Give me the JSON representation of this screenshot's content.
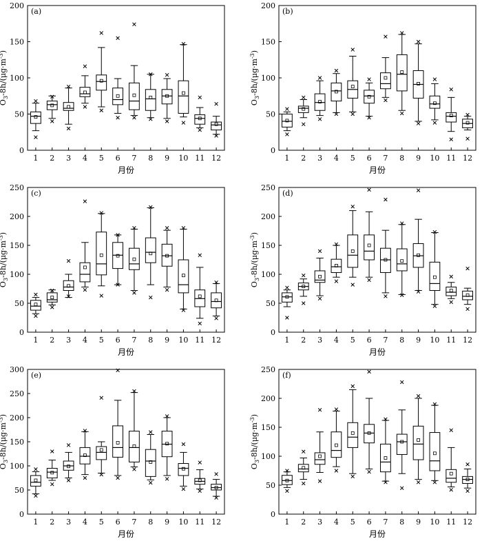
{
  "figure": {
    "xlabel": "月份",
    "ylabel_main": "O",
    "ylabel_sub": "3",
    "ylabel_rest": "-8h/(μg·m",
    "ylabel_sup": "-3",
    "ylabel_end": ")"
  },
  "chart_data": [
    {
      "type": "box",
      "panel": "(a)",
      "xlabel": "月份",
      "ylim": [
        0,
        200
      ],
      "yticks": [
        0,
        50,
        100,
        150,
        200
      ],
      "categories": [
        "1",
        "2",
        "3",
        "4",
        "5",
        "6",
        "7",
        "8",
        "9",
        "10",
        "11",
        "12"
      ],
      "boxes": [
        {
          "wlo": 27,
          "q1": 37,
          "med": 47,
          "q3": 53,
          "whi": 65,
          "mean": 46,
          "out_hi": 68,
          "out_lo": 18
        },
        {
          "wlo": 44,
          "q1": 56,
          "med": 63,
          "q3": 68,
          "whi": 75,
          "mean": 62,
          "out_hi": 74,
          "out_lo": 40
        },
        {
          "wlo": 36,
          "q1": 55,
          "med": 58,
          "q3": 66,
          "whi": 86,
          "mean": 60,
          "out_hi": 88,
          "out_lo": 30
        },
        {
          "wlo": 65,
          "q1": 74,
          "med": 78,
          "q3": 87,
          "whi": 103,
          "mean": 80,
          "out_hi": 116,
          "out_lo": 60
        },
        {
          "wlo": 60,
          "q1": 83,
          "med": 95,
          "q3": 104,
          "whi": 142,
          "mean": 96,
          "out_hi": 162,
          "out_lo": 55
        },
        {
          "wlo": 51,
          "q1": 63,
          "med": 70,
          "q3": 86,
          "whi": 99,
          "mean": 75,
          "out_hi": 155,
          "out_lo": 45
        },
        {
          "wlo": 48,
          "q1": 56,
          "med": 68,
          "q3": 93,
          "whi": 117,
          "mean": 76,
          "out_hi": 174,
          "out_lo": 45
        },
        {
          "wlo": 45,
          "q1": 55,
          "med": 71,
          "q3": 84,
          "whi": 105,
          "mean": 73,
          "out_hi": 105,
          "out_lo": 43
        },
        {
          "wlo": 44,
          "q1": 64,
          "med": 75,
          "q3": 84,
          "whi": 99,
          "mean": 75,
          "out_hi": 104,
          "out_lo": 40
        },
        {
          "wlo": 46,
          "q1": 51,
          "med": 75,
          "q3": 96,
          "whi": 146,
          "mean": 79,
          "out_hi": 147,
          "out_lo": 38
        },
        {
          "wlo": 31,
          "q1": 36,
          "med": 44,
          "q3": 49,
          "whi": 59,
          "mean": 44,
          "out_hi": 73,
          "out_lo": 28
        },
        {
          "wlo": 22,
          "q1": 28,
          "med": 35,
          "q3": 39,
          "whi": 47,
          "mean": 36,
          "out_hi": 64,
          "out_lo": 20
        }
      ]
    },
    {
      "type": "box",
      "panel": "(b)",
      "xlabel": "月份",
      "ylim": [
        0,
        200
      ],
      "yticks": [
        0,
        50,
        100,
        150,
        200
      ],
      "categories": [
        "1",
        "2",
        "3",
        "4",
        "5",
        "6",
        "7",
        "8",
        "9",
        "10",
        "11",
        "12"
      ],
      "boxes": [
        {
          "wlo": 27,
          "q1": 32,
          "med": 40,
          "q3": 50,
          "whi": 53,
          "mean": 41,
          "out_hi": 57,
          "out_lo": 22
        },
        {
          "wlo": 45,
          "q1": 52,
          "med": 58,
          "q3": 61,
          "whi": 70,
          "mean": 57,
          "out_hi": 73,
          "out_lo": 36
        },
        {
          "wlo": 48,
          "q1": 55,
          "med": 66,
          "q3": 78,
          "whi": 96,
          "mean": 67,
          "out_hi": 100,
          "out_lo": 43
        },
        {
          "wlo": 52,
          "q1": 68,
          "med": 82,
          "q3": 93,
          "whi": 106,
          "mean": 81,
          "out_hi": 110,
          "out_lo": 50
        },
        {
          "wlo": 53,
          "q1": 72,
          "med": 84,
          "q3": 96,
          "whi": 130,
          "mean": 88,
          "out_hi": 139,
          "out_lo": 50
        },
        {
          "wlo": 47,
          "q1": 65,
          "med": 75,
          "q3": 83,
          "whi": 93,
          "mean": 74,
          "out_hi": 98,
          "out_lo": 45
        },
        {
          "wlo": 73,
          "q1": 85,
          "med": 92,
          "q3": 107,
          "whi": 128,
          "mean": 100,
          "out_hi": 157,
          "out_lo": 69
        },
        {
          "wlo": 55,
          "q1": 82,
          "med": 105,
          "q3": 132,
          "whi": 160,
          "mean": 108,
          "out_hi": 162,
          "out_lo": 51
        },
        {
          "wlo": 40,
          "q1": 72,
          "med": 91,
          "q3": 110,
          "whi": 147,
          "mean": 92,
          "out_hi": 150,
          "out_lo": 37
        },
        {
          "wlo": 42,
          "q1": 58,
          "med": 64,
          "q3": 75,
          "whi": 92,
          "mean": 65,
          "out_hi": 98,
          "out_lo": 38
        },
        {
          "wlo": 26,
          "q1": 39,
          "med": 47,
          "q3": 52,
          "whi": 73,
          "mean": 48,
          "out_hi": 84,
          "out_lo": 15
        },
        {
          "wlo": 28,
          "q1": 31,
          "med": 37,
          "q3": 43,
          "whi": 47,
          "mean": 38,
          "out_hi": 49,
          "out_lo": 16
        }
      ]
    },
    {
      "type": "box",
      "panel": "(c)",
      "xlabel": "月份",
      "ylim": [
        0,
        250
      ],
      "yticks": [
        0,
        50,
        100,
        150,
        200,
        250
      ],
      "categories": [
        "1",
        "2",
        "3",
        "4",
        "5",
        "6",
        "7",
        "8",
        "9",
        "10",
        "11",
        "12"
      ],
      "boxes": [
        {
          "wlo": 32,
          "q1": 38,
          "med": 45,
          "q3": 55,
          "whi": 60,
          "mean": 48,
          "out_hi": 65,
          "out_lo": 28
        },
        {
          "wlo": 47,
          "q1": 52,
          "med": 56,
          "q3": 68,
          "whi": 73,
          "mean": 60,
          "out_hi": 72,
          "out_lo": 43
        },
        {
          "wlo": 60,
          "q1": 72,
          "med": 78,
          "q3": 89,
          "whi": 100,
          "mean": 80,
          "out_hi": 123,
          "out_lo": 62
        },
        {
          "wlo": 78,
          "q1": 87,
          "med": 100,
          "q3": 120,
          "whi": 155,
          "mean": 112,
          "out_hi": 226,
          "out_lo": 73
        },
        {
          "wlo": 80,
          "q1": 99,
          "med": 118,
          "q3": 173,
          "whi": 205,
          "mean": 133,
          "out_hi": 206,
          "out_lo": 63
        },
        {
          "wlo": 82,
          "q1": 110,
          "med": 133,
          "q3": 155,
          "whi": 168,
          "mean": 132,
          "out_hi": 168,
          "out_lo": 82
        },
        {
          "wlo": 72,
          "q1": 108,
          "med": 118,
          "q3": 145,
          "whi": 178,
          "mean": 126,
          "out_hi": 180,
          "out_lo": 68
        },
        {
          "wlo": 82,
          "q1": 120,
          "med": 138,
          "q3": 163,
          "whi": 215,
          "mean": 136,
          "out_hi": 216,
          "out_lo": 60
        },
        {
          "wlo": 78,
          "q1": 114,
          "med": 132,
          "q3": 152,
          "whi": 176,
          "mean": 132,
          "out_hi": 180,
          "out_lo": 73
        },
        {
          "wlo": 40,
          "q1": 68,
          "med": 82,
          "q3": 125,
          "whi": 178,
          "mean": 98,
          "out_hi": 180,
          "out_lo": 38
        },
        {
          "wlo": 24,
          "q1": 44,
          "med": 58,
          "q3": 73,
          "whi": 112,
          "mean": 62,
          "out_hi": 133,
          "out_lo": 15
        },
        {
          "wlo": 28,
          "q1": 42,
          "med": 53,
          "q3": 68,
          "whi": 84,
          "mean": 55,
          "out_hi": 86,
          "out_lo": 24
        }
      ]
    },
    {
      "type": "box",
      "panel": "(d)",
      "xlabel": "月份",
      "ylim": [
        0,
        250
      ],
      "yticks": [
        0,
        50,
        100,
        150,
        200,
        250
      ],
      "categories": [
        "1",
        "2",
        "3",
        "4",
        "5",
        "6",
        "7",
        "8",
        "9",
        "10",
        "11",
        "12"
      ],
      "boxes": [
        {
          "wlo": 44,
          "q1": 52,
          "med": 61,
          "q3": 68,
          "whi": 73,
          "mean": 61,
          "out_hi": 77,
          "out_lo": 25
        },
        {
          "wlo": 62,
          "q1": 73,
          "med": 79,
          "q3": 85,
          "whi": 92,
          "mean": 79,
          "out_hi": 98,
          "out_lo": 50
        },
        {
          "wlo": 63,
          "q1": 86,
          "med": 90,
          "q3": 106,
          "whi": 128,
          "mean": 96,
          "out_hi": 140,
          "out_lo": 58
        },
        {
          "wlo": 95,
          "q1": 103,
          "med": 113,
          "q3": 126,
          "whi": 150,
          "mean": 115,
          "out_hi": 152,
          "out_lo": 88
        },
        {
          "wlo": 95,
          "q1": 112,
          "med": 133,
          "q3": 168,
          "whi": 210,
          "mean": 140,
          "out_hi": 217,
          "out_lo": 82
        },
        {
          "wlo": 95,
          "q1": 125,
          "med": 140,
          "q3": 168,
          "whi": 208,
          "mean": 150,
          "out_hi": 246,
          "out_lo": 90
        },
        {
          "wlo": 68,
          "q1": 103,
          "med": 125,
          "q3": 145,
          "whi": 176,
          "mean": 125,
          "out_hi": 229,
          "out_lo": 62
        },
        {
          "wlo": 65,
          "q1": 106,
          "med": 118,
          "q3": 144,
          "whi": 186,
          "mean": 123,
          "out_hi": 188,
          "out_lo": 64
        },
        {
          "wlo": 72,
          "q1": 112,
          "med": 132,
          "q3": 153,
          "whi": 195,
          "mean": 133,
          "out_hi": 245,
          "out_lo": 70
        },
        {
          "wlo": 48,
          "q1": 72,
          "med": 84,
          "q3": 121,
          "whi": 172,
          "mean": 95,
          "out_hi": 173,
          "out_lo": 45
        },
        {
          "wlo": 58,
          "q1": 63,
          "med": 69,
          "q3": 78,
          "whi": 86,
          "mean": 72,
          "out_hi": 96,
          "out_lo": 52
        },
        {
          "wlo": 48,
          "q1": 56,
          "med": 62,
          "q3": 71,
          "whi": 76,
          "mean": 64,
          "out_hi": 110,
          "out_lo": 40
        }
      ]
    },
    {
      "type": "box",
      "panel": "(e)",
      "xlabel": "月份",
      "ylim": [
        0,
        300
      ],
      "yticks": [
        0,
        50,
        100,
        150,
        200,
        250,
        300
      ],
      "categories": [
        "1",
        "2",
        "3",
        "4",
        "5",
        "6",
        "7",
        "8",
        "9",
        "10",
        "11",
        "12"
      ],
      "boxes": [
        {
          "wlo": 42,
          "q1": 58,
          "med": 66,
          "q3": 80,
          "whi": 88,
          "mean": 70,
          "out_hi": 93,
          "out_lo": 38
        },
        {
          "wlo": 70,
          "q1": 75,
          "med": 87,
          "q3": 95,
          "whi": 112,
          "mean": 86,
          "out_hi": 130,
          "out_lo": 62
        },
        {
          "wlo": 75,
          "q1": 91,
          "med": 100,
          "q3": 110,
          "whi": 128,
          "mean": 99,
          "out_hi": 143,
          "out_lo": 70
        },
        {
          "wlo": 82,
          "q1": 104,
          "med": 120,
          "q3": 138,
          "whi": 171,
          "mean": 122,
          "out_hi": 173,
          "out_lo": 75
        },
        {
          "wlo": 85,
          "q1": 113,
          "med": 128,
          "q3": 140,
          "whi": 150,
          "mean": 133,
          "out_hi": 241,
          "out_lo": 82
        },
        {
          "wlo": 80,
          "q1": 118,
          "med": 138,
          "q3": 183,
          "whi": 236,
          "mean": 148,
          "out_hi": 298,
          "out_lo": 75
        },
        {
          "wlo": 98,
          "q1": 108,
          "med": 138,
          "q3": 172,
          "whi": 252,
          "mean": 141,
          "out_hi": 255,
          "out_lo": 93
        },
        {
          "wlo": 71,
          "q1": 78,
          "med": 110,
          "q3": 134,
          "whi": 165,
          "mean": 108,
          "out_hi": 170,
          "out_lo": 65
        },
        {
          "wlo": 80,
          "q1": 119,
          "med": 145,
          "q3": 172,
          "whi": 200,
          "mean": 146,
          "out_hi": 203,
          "out_lo": 73
        },
        {
          "wlo": 58,
          "q1": 80,
          "med": 95,
          "q3": 105,
          "whi": 128,
          "mean": 94,
          "out_hi": 145,
          "out_lo": 52
        },
        {
          "wlo": 52,
          "q1": 62,
          "med": 68,
          "q3": 74,
          "whi": 92,
          "mean": 70,
          "out_hi": 107,
          "out_lo": 48
        },
        {
          "wlo": 37,
          "q1": 50,
          "med": 55,
          "q3": 62,
          "whi": 72,
          "mean": 55,
          "out_hi": 83,
          "out_lo": 34
        }
      ]
    },
    {
      "type": "box",
      "panel": "(f)",
      "xlabel": "月份",
      "ylim": [
        0,
        250
      ],
      "yticks": [
        0,
        50,
        100,
        150,
        200,
        250
      ],
      "categories": [
        "1",
        "2",
        "3",
        "4",
        "5",
        "6",
        "7",
        "8",
        "9",
        "10",
        "11",
        "12"
      ],
      "boxes": [
        {
          "wlo": 46,
          "q1": 51,
          "med": 58,
          "q3": 67,
          "whi": 73,
          "mean": 58,
          "out_hi": 75,
          "out_lo": 40
        },
        {
          "wlo": 60,
          "q1": 73,
          "med": 78,
          "q3": 86,
          "whi": 97,
          "mean": 80,
          "out_hi": 108,
          "out_lo": 53
        },
        {
          "wlo": 72,
          "q1": 86,
          "med": 94,
          "q3": 106,
          "whi": 142,
          "mean": 100,
          "out_hi": 180,
          "out_lo": 57
        },
        {
          "wlo": 82,
          "q1": 98,
          "med": 110,
          "q3": 142,
          "whi": 178,
          "mean": 119,
          "out_hi": 181,
          "out_lo": 75
        },
        {
          "wlo": 70,
          "q1": 115,
          "med": 133,
          "q3": 158,
          "whi": 215,
          "mean": 140,
          "out_hi": 221,
          "out_lo": 65
        },
        {
          "wlo": 78,
          "q1": 123,
          "med": 140,
          "q3": 155,
          "whi": 200,
          "mean": 140,
          "out_hi": 246,
          "out_lo": 73
        },
        {
          "wlo": 57,
          "q1": 73,
          "med": 90,
          "q3": 121,
          "whi": 162,
          "mean": 97,
          "out_hi": 164,
          "out_lo": 55
        },
        {
          "wlo": 70,
          "q1": 103,
          "med": 125,
          "q3": 138,
          "whi": 180,
          "mean": 125,
          "out_hi": 228,
          "out_lo": 45
        },
        {
          "wlo": 60,
          "q1": 94,
          "med": 121,
          "q3": 152,
          "whi": 200,
          "mean": 128,
          "out_hi": 204,
          "out_lo": 55
        },
        {
          "wlo": 58,
          "q1": 75,
          "med": 92,
          "q3": 141,
          "whi": 188,
          "mean": 105,
          "out_hi": 190,
          "out_lo": 55
        },
        {
          "wlo": 47,
          "q1": 55,
          "med": 62,
          "q3": 77,
          "whi": 115,
          "mean": 70,
          "out_hi": 145,
          "out_lo": 42
        },
        {
          "wlo": 45,
          "q1": 53,
          "med": 60,
          "q3": 65,
          "whi": 78,
          "mean": 60,
          "out_hi": 86,
          "out_lo": 40
        }
      ]
    }
  ]
}
